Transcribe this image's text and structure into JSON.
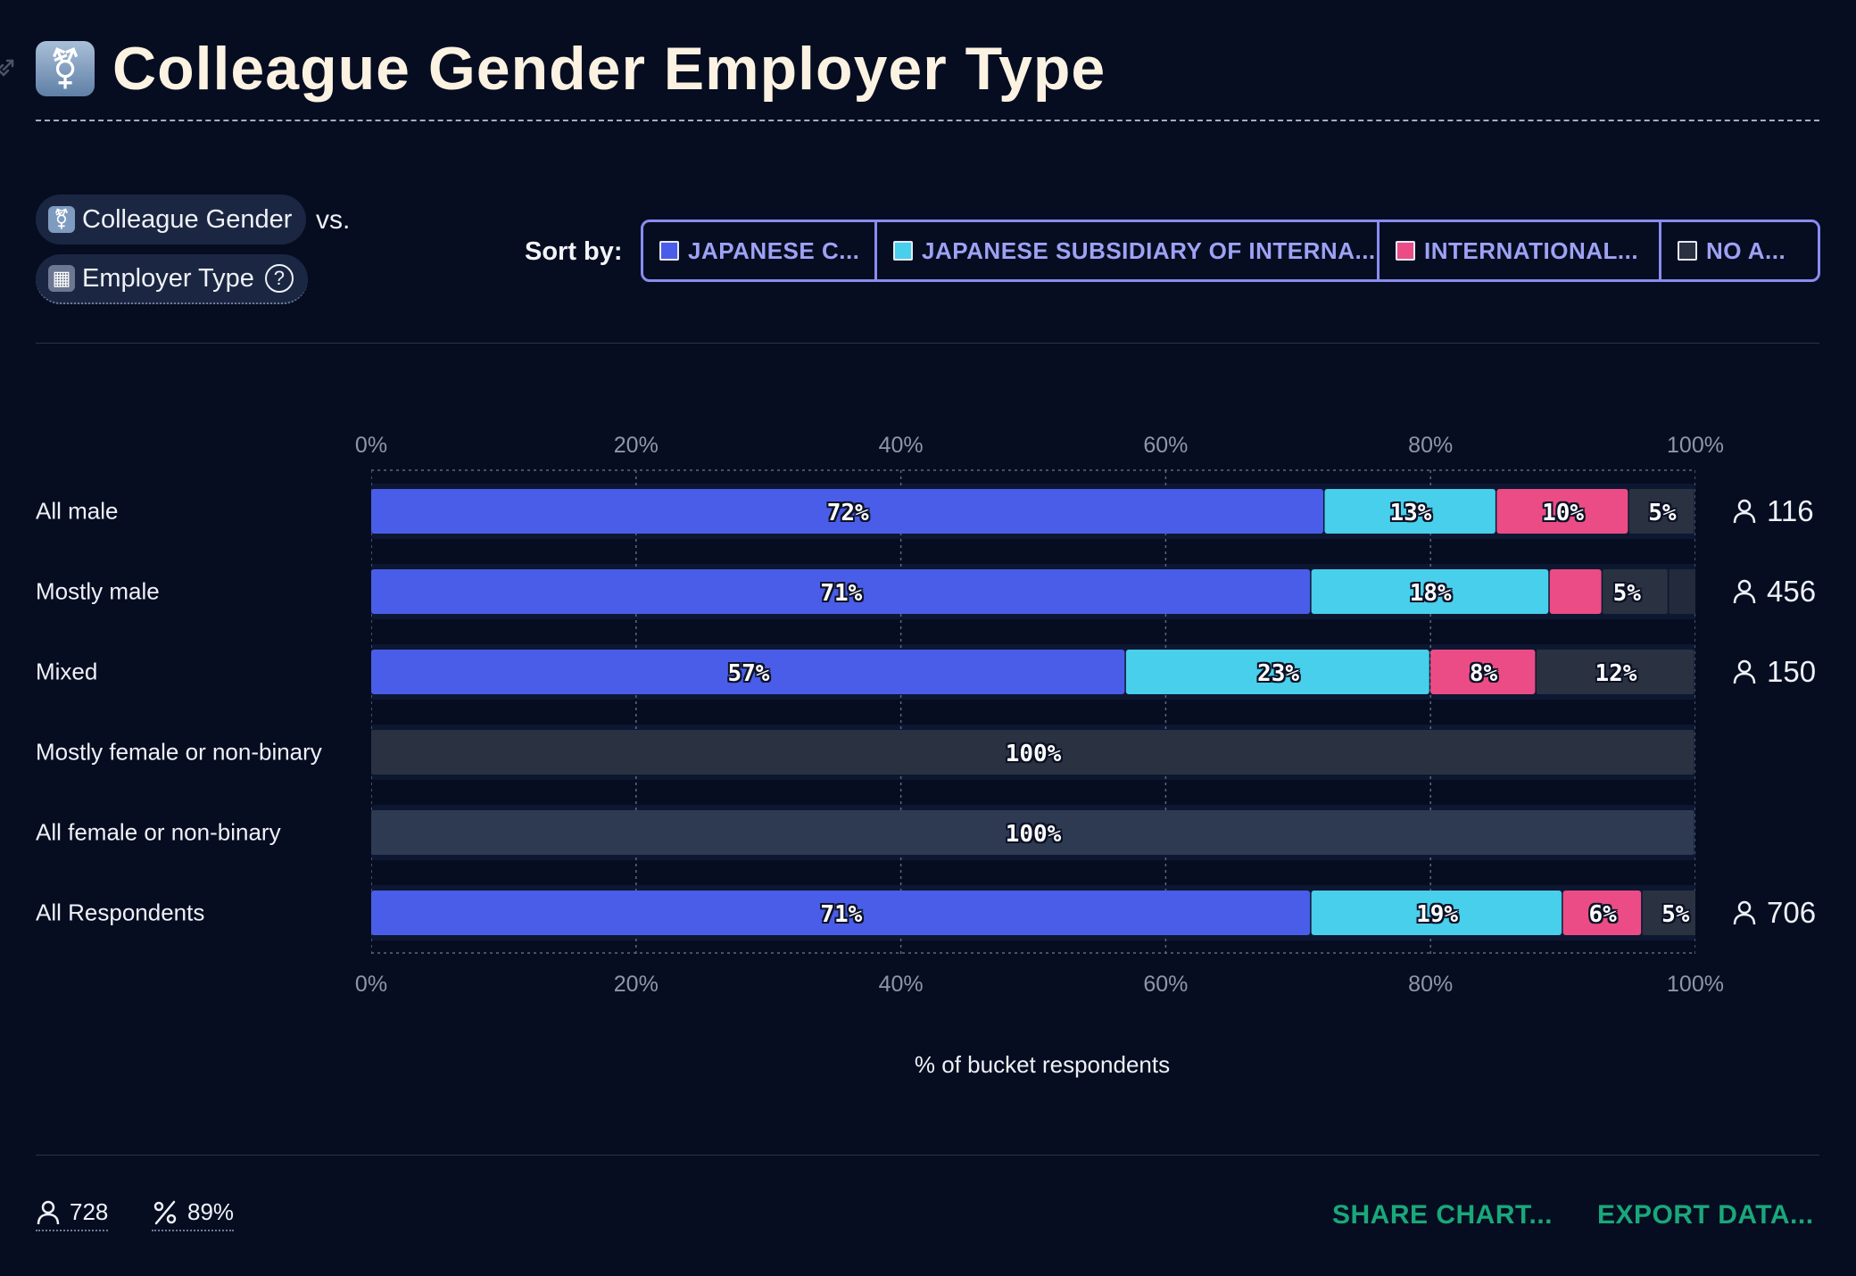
{
  "header": {
    "title": "Colleague Gender Employer Type"
  },
  "pills": {
    "primary": "Colleague Gender",
    "vs": "vs.",
    "secondary": "Employer Type"
  },
  "sort": {
    "label": "Sort by:",
    "options": [
      {
        "label": "JAPANESE C...",
        "color": "#4a5de9"
      },
      {
        "label": "JAPANESE SUBSIDIARY OF INTERNA...",
        "color": "#48cfeb"
      },
      {
        "label": "INTERNATIONAL...",
        "color": "#ec4c86"
      },
      {
        "label": "NO A...",
        "color": "#2a3140"
      }
    ]
  },
  "chart_data": {
    "type": "bar",
    "orientation": "horizontal",
    "stacked": true,
    "xlabel": "% of bucket respondents",
    "xlim": [
      0,
      100
    ],
    "ticks": [
      "0%",
      "20%",
      "40%",
      "60%",
      "80%",
      "100%"
    ],
    "categories": [
      "All male",
      "Mostly male",
      "Mixed",
      "Mostly female or non-binary",
      "All female or non-binary",
      "All Respondents"
    ],
    "counts": [
      "116",
      "456",
      "150",
      "",
      "",
      "706"
    ],
    "series": [
      {
        "name": "JAPANESE C...",
        "color": "#4a5de9",
        "values": [
          72,
          71,
          57,
          0,
          0,
          71
        ]
      },
      {
        "name": "JAPANESE SUBSIDIARY OF INTERNA...",
        "color": "#48cfeb",
        "values": [
          13,
          18,
          23,
          0,
          0,
          19
        ]
      },
      {
        "name": "INTERNATIONAL...",
        "color": "#ec4c86",
        "values": [
          10,
          4,
          8,
          0,
          0,
          6
        ]
      },
      {
        "name": "NO A...",
        "color": "#2a3140",
        "values": [
          5,
          5,
          12,
          100,
          100,
          5
        ]
      }
    ],
    "extra_segments": [
      {
        "row": 1,
        "value": 3,
        "color": "#222a3b"
      }
    ],
    "data_labels": [
      [
        "72%",
        "13%",
        "10%",
        "5%"
      ],
      [
        "71%",
        "18%",
        "",
        "5%"
      ],
      [
        "57%",
        "23%",
        "8%",
        "12%"
      ],
      [
        "",
        "",
        "",
        "100%"
      ],
      [
        "",
        "",
        "",
        "100%"
      ],
      [
        "71%",
        "19%",
        "6%",
        "5%"
      ]
    ],
    "grid": true
  },
  "footer": {
    "respondents": "728",
    "percent": "89%",
    "share_label": "SHARE CHART...",
    "export_label": "EXPORT DATA..."
  }
}
